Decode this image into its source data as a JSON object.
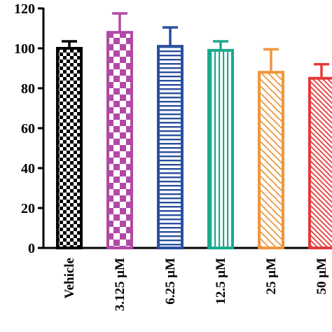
{
  "chart_data": {
    "type": "bar",
    "title": "",
    "xlabel": "",
    "ylabel": "",
    "ylim": [
      0,
      120
    ],
    "yticks": [
      0,
      20,
      40,
      60,
      80,
      100,
      120
    ],
    "categories": [
      "Vehicle",
      "3.125 μM",
      "6.25 μM",
      "12.5 μM",
      "25 μM",
      "50 μM"
    ],
    "values": [
      100,
      108,
      101,
      99,
      88,
      85
    ],
    "errors": [
      3.5,
      9.5,
      9.5,
      4.5,
      11.5,
      7
    ],
    "grid": false,
    "series_style": [
      {
        "color": "#000000",
        "pattern": "checker-fine"
      },
      {
        "color": "#b04aa6",
        "pattern": "checker-large"
      },
      {
        "color": "#2a4f9e",
        "pattern": "horizontal-lines"
      },
      {
        "color": "#1aaa8f",
        "pattern": "vertical-lines"
      },
      {
        "color": "#f0963c",
        "pattern": "diagonal-lines"
      },
      {
        "color": "#e23a3a",
        "pattern": "diagonal-lines-dense"
      }
    ]
  }
}
